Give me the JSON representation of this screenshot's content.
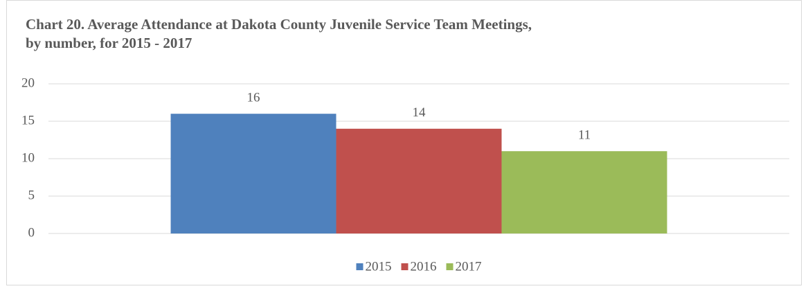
{
  "chart_data": {
    "type": "bar",
    "title": "Chart 20. Average Attendance at Dakota County Juvenile Service Team Meetings, by number, for 2015 - 2017",
    "categories": [
      null
    ],
    "series": [
      {
        "name": "2015",
        "color": "#4f81bd",
        "values": [
          16
        ]
      },
      {
        "name": "2016",
        "color": "#c0504d",
        "values": [
          14
        ]
      },
      {
        "name": "2017",
        "color": "#9bbb59",
        "values": [
          11
        ]
      }
    ],
    "ylim": [
      0,
      20
    ],
    "yticks": [
      0,
      5,
      10,
      15,
      20
    ],
    "grid": true,
    "legend": "bottom"
  }
}
